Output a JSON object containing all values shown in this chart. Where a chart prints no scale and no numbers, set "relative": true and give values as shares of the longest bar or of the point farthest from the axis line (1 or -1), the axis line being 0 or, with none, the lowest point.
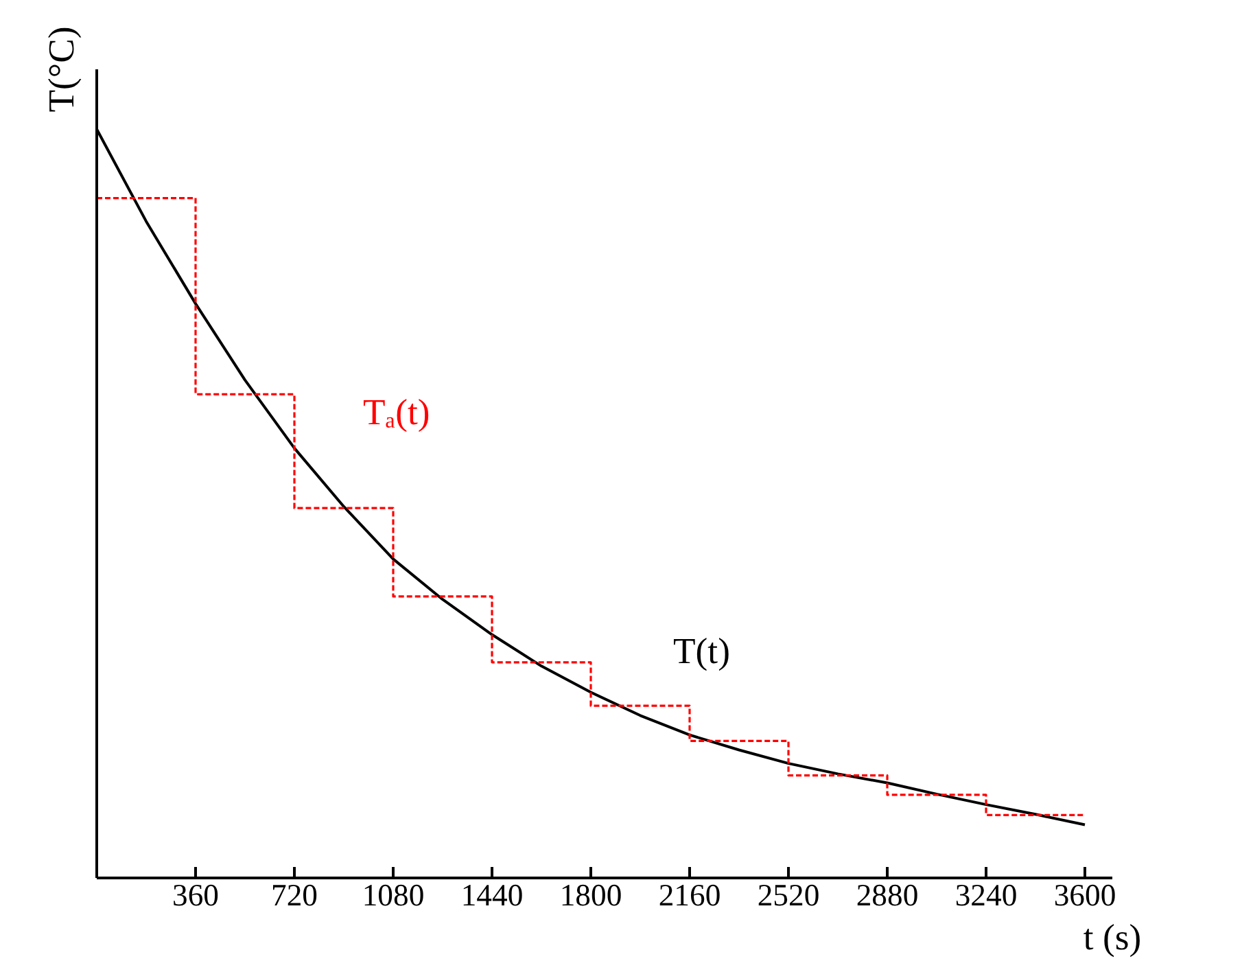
{
  "chart_data": {
    "type": "line",
    "relative": true,
    "xlabel": "t (s)",
    "ylabel": "T(°C)",
    "xlim": [
      0,
      3700
    ],
    "xticks": [
      360,
      720,
      1080,
      1440,
      1800,
      2160,
      2520,
      2880,
      3240,
      3600
    ],
    "grid": false,
    "series": [
      {
        "name": "T(t)",
        "color": "#000000",
        "line_style": "solid",
        "x": [
          0,
          180,
          360,
          540,
          720,
          900,
          1080,
          1260,
          1440,
          1620,
          1800,
          1980,
          2160,
          2340,
          2520,
          2700,
          2880,
          3060,
          3240,
          3420,
          3600
        ],
        "values": [
          1.0,
          0.877,
          0.767,
          0.665,
          0.574,
          0.496,
          0.426,
          0.372,
          0.325,
          0.283,
          0.248,
          0.217,
          0.191,
          0.171,
          0.153,
          0.139,
          0.127,
          0.112,
          0.098,
          0.085,
          0.071
        ]
      },
      {
        "name": "Tₐ(t)",
        "type": "step",
        "color": "#ff0000",
        "line_style": "dashed",
        "x": [
          0,
          360,
          720,
          1080,
          1440,
          1800,
          2160,
          2520,
          2880,
          3240,
          3600
        ],
        "values": [
          0.908,
          0.646,
          0.494,
          0.376,
          0.288,
          0.23,
          0.183,
          0.137,
          0.111,
          0.084,
          0.084
        ]
      }
    ]
  }
}
